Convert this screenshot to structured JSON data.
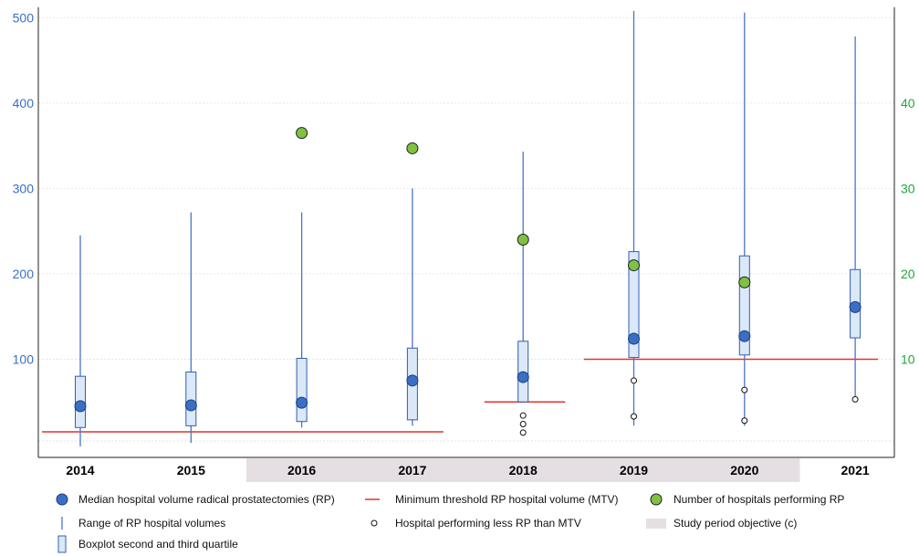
{
  "chart_data": {
    "type": "boxplot",
    "categories": [
      "2014",
      "2015",
      "2016",
      "2017",
      "2018",
      "2019",
      "2020",
      "2021"
    ],
    "left_axis": {
      "ticks": [
        100,
        200,
        300,
        400,
        500
      ],
      "range": [
        -15,
        510
      ]
    },
    "right_axis": {
      "ticks": [
        10,
        20,
        30,
        40
      ],
      "range": [
        -1.5,
        51
      ]
    },
    "range_min": [
      -2,
      2,
      20,
      22,
      52,
      22,
      22,
      55
    ],
    "range_max": [
      245,
      272,
      272,
      300,
      343,
      508,
      506,
      478
    ],
    "q1": [
      20,
      22,
      27,
      29,
      50,
      102,
      105,
      125
    ],
    "q3": [
      80,
      85,
      101,
      113,
      121,
      226,
      221,
      205
    ],
    "median": [
      45,
      46,
      49,
      75,
      79,
      124,
      127,
      161
    ],
    "hospitals_count": [
      null,
      null,
      36.5,
      34.7,
      24,
      21,
      19,
      null
    ],
    "below_mtv_points": [
      [],
      [],
      [],
      [],
      [
        14,
        24,
        34
      ],
      [
        33,
        75
      ],
      [
        28,
        64
      ],
      [
        53
      ]
    ],
    "mtv_segments": [
      {
        "from": "2014",
        "to": "2017",
        "value": 15
      },
      {
        "from": "2018",
        "to": "2018",
        "value": 50
      },
      {
        "from": "2019",
        "to": "2021",
        "value": 100
      }
    ],
    "study_period": [
      "2016",
      "2020"
    ],
    "legend": [
      {
        "key": "median",
        "label": "Median hospital volume radical prostatectomies (RP)"
      },
      {
        "key": "mtv",
        "label": "Minimum threshold RP hospital volume (MTV)"
      },
      {
        "key": "hospitals",
        "label": "Number of hospitals performing RP"
      },
      {
        "key": "range",
        "label": "Range of RP hospital volumes"
      },
      {
        "key": "below",
        "label": "Hospital performing less RP than MTV"
      },
      {
        "key": "study",
        "label": "Study period objective (c)"
      },
      {
        "key": "box",
        "label": "Boxplot second and third quartile"
      }
    ],
    "colors": {
      "median": "#3a6fc4",
      "range": "#4a74c9",
      "box_fill": "#dbe8f7",
      "box_stroke": "#2f5fb0",
      "hospitals": "#7fc241",
      "mtv": "#e0332b",
      "study_band": "#e5dfe3",
      "left_axis": "#3a6fc4",
      "right_axis": "#22a63a"
    }
  }
}
